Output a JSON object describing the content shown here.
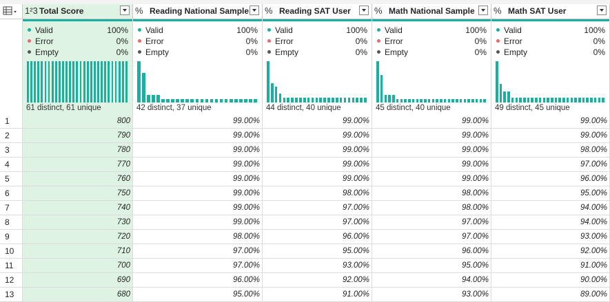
{
  "columns": [
    {
      "name": "Total Score",
      "type_icon": "1²3",
      "selected": true,
      "valid": "100%",
      "error": "0%",
      "empty": "0%",
      "distinct": "61 distinct, 61 unique",
      "histogram": [
        1,
        1,
        1,
        1,
        1,
        1,
        1,
        1,
        1,
        1,
        1,
        1,
        1,
        1,
        1,
        1,
        1,
        1,
        1,
        1,
        1,
        1,
        1,
        1,
        1,
        1,
        1,
        1,
        1
      ]
    },
    {
      "name": "Reading National Sample",
      "type_icon": "%",
      "selected": false,
      "valid": "100%",
      "error": "0%",
      "empty": "0%",
      "distinct": "42 distinct, 37 unique",
      "histogram": [
        1,
        0.72,
        0.18,
        0.18,
        0.18,
        0.09,
        0.09,
        0.09,
        0.09,
        0.09,
        0.09,
        0.09,
        0.09,
        0.09,
        0.09,
        0.09,
        0.09,
        0.09,
        0.09,
        0.09,
        0.09,
        0.09,
        0.09,
        0.09,
        0.09
      ]
    },
    {
      "name": "Reading SAT User",
      "type_icon": "%",
      "selected": false,
      "valid": "100%",
      "error": "0%",
      "empty": "0%",
      "distinct": "44 distinct, 40 unique",
      "histogram": [
        1,
        0.47,
        0.38,
        0.21,
        0.11,
        0.11,
        0.11,
        0.11,
        0.11,
        0.11,
        0.11,
        0.11,
        0.11,
        0.11,
        0.11,
        0.11,
        0.11,
        0.11,
        0.11,
        0.11,
        0.11,
        0.11,
        0.11,
        0.11,
        0.11
      ]
    },
    {
      "name": "Math National Sample",
      "type_icon": "%",
      "selected": false,
      "valid": "100%",
      "error": "0%",
      "empty": "0%",
      "distinct": "45 distinct, 40 unique",
      "histogram": [
        1,
        0.66,
        0.19,
        0.19,
        0.19,
        0.09,
        0.09,
        0.09,
        0.09,
        0.09,
        0.09,
        0.09,
        0.09,
        0.09,
        0.09,
        0.09,
        0.09,
        0.09,
        0.09,
        0.09,
        0.09,
        0.09,
        0.09,
        0.09,
        0.09,
        0.09,
        0.09,
        0.09
      ]
    },
    {
      "name": "Math SAT User",
      "type_icon": "%",
      "selected": false,
      "valid": "100%",
      "error": "0%",
      "empty": "0%",
      "distinct": "49 distinct, 45 unique",
      "histogram": [
        1,
        0.45,
        0.26,
        0.26,
        0.12,
        0.12,
        0.12,
        0.12,
        0.12,
        0.12,
        0.12,
        0.12,
        0.12,
        0.12,
        0.12,
        0.12,
        0.12,
        0.12,
        0.12,
        0.12,
        0.12,
        0.12,
        0.12,
        0.12,
        0.12,
        0.12,
        0.12,
        0.12
      ]
    }
  ],
  "quality_labels": {
    "valid": "Valid",
    "error": "Error",
    "empty": "Empty"
  },
  "colors": {
    "valid": "#1aaf9e",
    "error": "#e8696b",
    "empty": "#555555",
    "accent": "#17b0a0",
    "selected_bg": "#dff3e4"
  },
  "rows": [
    {
      "n": "1",
      "cells": [
        "800",
        "99.00%",
        "99.00%",
        "99.00%",
        "99.00%"
      ]
    },
    {
      "n": "2",
      "cells": [
        "790",
        "99.00%",
        "99.00%",
        "99.00%",
        "99.00%"
      ]
    },
    {
      "n": "3",
      "cells": [
        "780",
        "99.00%",
        "99.00%",
        "99.00%",
        "98.00%"
      ]
    },
    {
      "n": "4",
      "cells": [
        "770",
        "99.00%",
        "99.00%",
        "99.00%",
        "97.00%"
      ]
    },
    {
      "n": "5",
      "cells": [
        "760",
        "99.00%",
        "99.00%",
        "99.00%",
        "96.00%"
      ]
    },
    {
      "n": "6",
      "cells": [
        "750",
        "99.00%",
        "98.00%",
        "98.00%",
        "95.00%"
      ]
    },
    {
      "n": "7",
      "cells": [
        "740",
        "99.00%",
        "97.00%",
        "98.00%",
        "94.00%"
      ]
    },
    {
      "n": "8",
      "cells": [
        "730",
        "99.00%",
        "97.00%",
        "97.00%",
        "94.00%"
      ]
    },
    {
      "n": "9",
      "cells": [
        "720",
        "98.00%",
        "96.00%",
        "97.00%",
        "93.00%"
      ]
    },
    {
      "n": "10",
      "cells": [
        "710",
        "97.00%",
        "95.00%",
        "96.00%",
        "92.00%"
      ]
    },
    {
      "n": "11",
      "cells": [
        "700",
        "97.00%",
        "93.00%",
        "95.00%",
        "91.00%"
      ]
    },
    {
      "n": "12",
      "cells": [
        "690",
        "96.00%",
        "92.00%",
        "94.00%",
        "90.00%"
      ]
    },
    {
      "n": "13",
      "cells": [
        "680",
        "95.00%",
        "91.00%",
        "93.00%",
        "89.00%"
      ]
    }
  ]
}
